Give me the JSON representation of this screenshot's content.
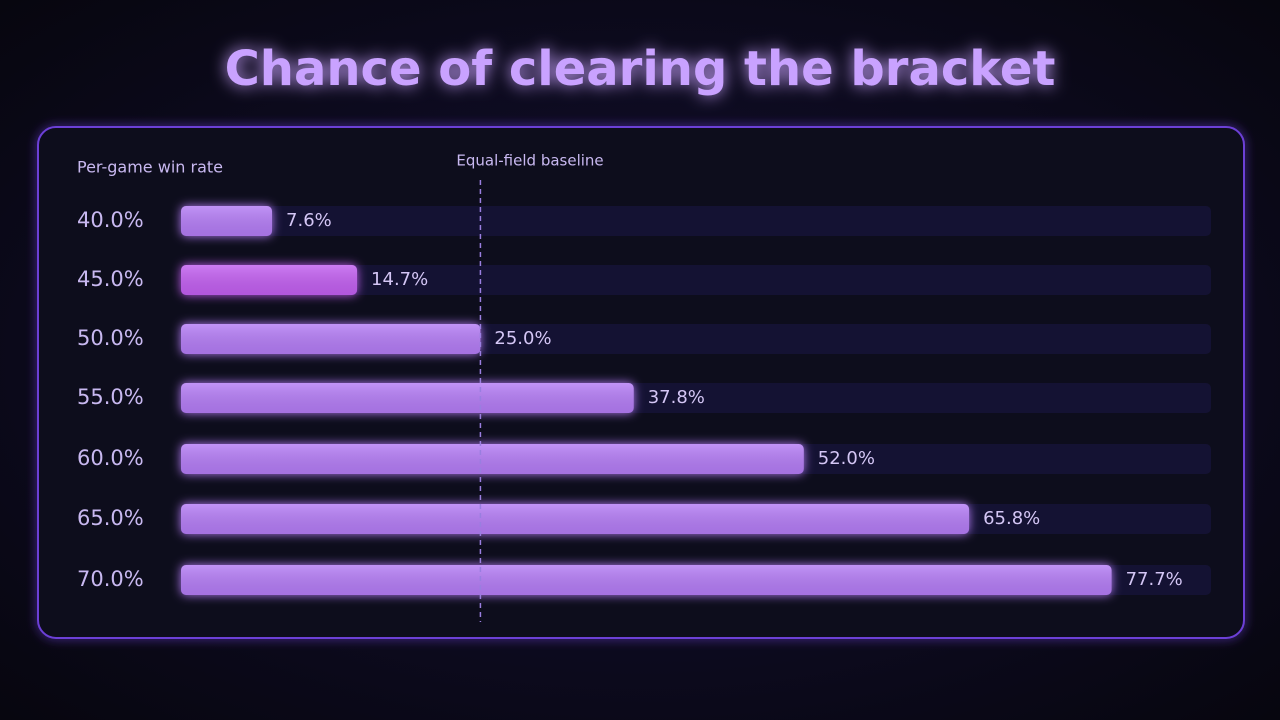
{
  "chart_data": {
    "type": "bar",
    "orientation": "horizontal",
    "title": "Chance of clearing the bracket",
    "y_label": "Per-game win rate",
    "categories": [
      "40.0%",
      "45.0%",
      "50.0%",
      "55.0%",
      "60.0%",
      "65.0%",
      "70.0%"
    ],
    "values": [
      7.6,
      14.7,
      25.0,
      37.8,
      52.0,
      65.8,
      77.7
    ],
    "value_labels": [
      "7.6%",
      "14.7%",
      "25.0%",
      "37.8%",
      "52.0%",
      "65.8%",
      "77.7%"
    ],
    "colors": [
      "#b47cf5",
      "#c25ef0",
      "#b47cf5",
      "#b47cf5",
      "#b47cf5",
      "#b47cf5",
      "#b47cf5"
    ],
    "xlim": [
      0,
      86
    ],
    "baseline": {
      "label": "Equal-field baseline",
      "value": 25
    }
  }
}
